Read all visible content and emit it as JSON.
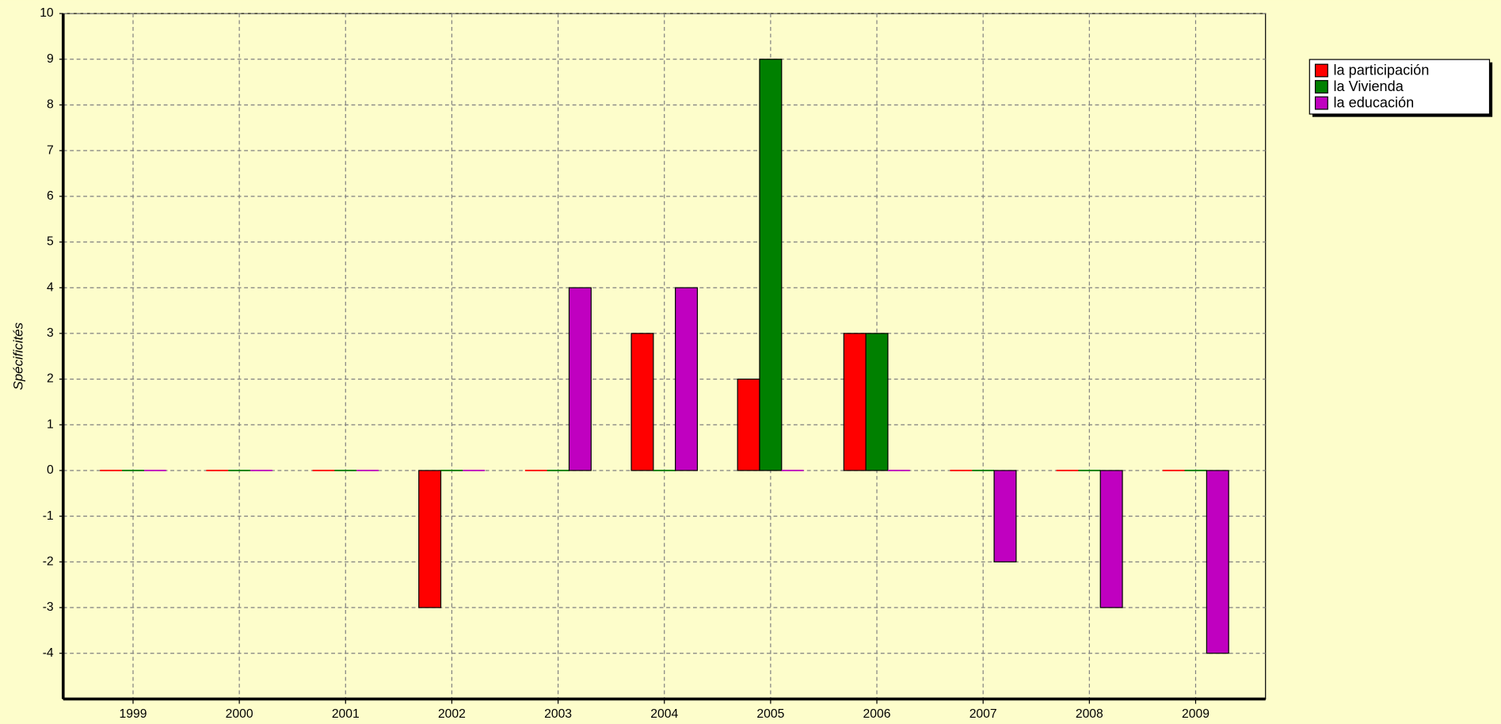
{
  "chart_data": {
    "type": "bar",
    "y_label": "Spécificités",
    "categories": [
      "1999",
      "2000",
      "2001",
      "2002",
      "2003",
      "2004",
      "2005",
      "2006",
      "2007",
      "2008",
      "2009"
    ],
    "series": [
      {
        "name": "la participación",
        "color": "#ff0000",
        "values": [
          0,
          0,
          0,
          -3,
          0,
          3,
          2,
          3,
          0,
          0,
          0
        ]
      },
      {
        "name": "la Vivienda",
        "color": "#008000",
        "values": [
          0,
          0,
          0,
          0,
          0,
          0,
          9,
          3,
          0,
          0,
          0
        ]
      },
      {
        "name": "la educación",
        "color": "#c000c0",
        "values": [
          0,
          0,
          0,
          0,
          4,
          4,
          0,
          0,
          -2,
          -3,
          -4
        ]
      }
    ],
    "ylim": [
      -5,
      10
    ],
    "yticks": [
      -4,
      -3,
      -2,
      -1,
      0,
      1,
      2,
      3,
      4,
      5,
      6,
      7,
      8,
      9,
      10
    ],
    "grid": true,
    "legend": "top-right"
  }
}
